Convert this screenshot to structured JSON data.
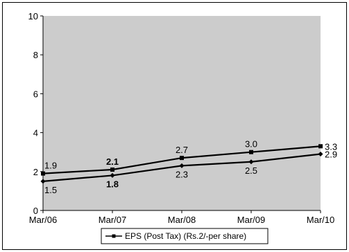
{
  "chart_data": {
    "type": "line",
    "categories": [
      "Mar/06",
      "Mar/07",
      "Mar/08",
      "Mar/09",
      "Mar/10"
    ],
    "ylim": [
      0,
      10
    ],
    "yticks": [
      0,
      2,
      4,
      6,
      8,
      10
    ],
    "grid": false,
    "legend_position": "bottom-center",
    "plot_background": "#cccccc",
    "line_color": "#000000",
    "legend_label": "EPS (Post Tax) (Rs.2/-per share)",
    "series": [
      {
        "values": [
          1.9,
          2.1,
          2.7,
          3.0,
          3.3
        ],
        "labels": [
          "1.9",
          "2.1",
          "2.7",
          "3.0",
          "3.3"
        ],
        "label_bold": [
          false,
          true,
          false,
          false,
          false
        ],
        "marker": "square"
      },
      {
        "values": [
          1.5,
          1.8,
          2.3,
          2.5,
          2.9
        ],
        "labels": [
          "1.5",
          "1.8",
          "2.3",
          "2.5",
          "2.9"
        ],
        "label_bold": [
          false,
          true,
          false,
          false,
          false
        ],
        "marker": "diamond"
      }
    ]
  }
}
